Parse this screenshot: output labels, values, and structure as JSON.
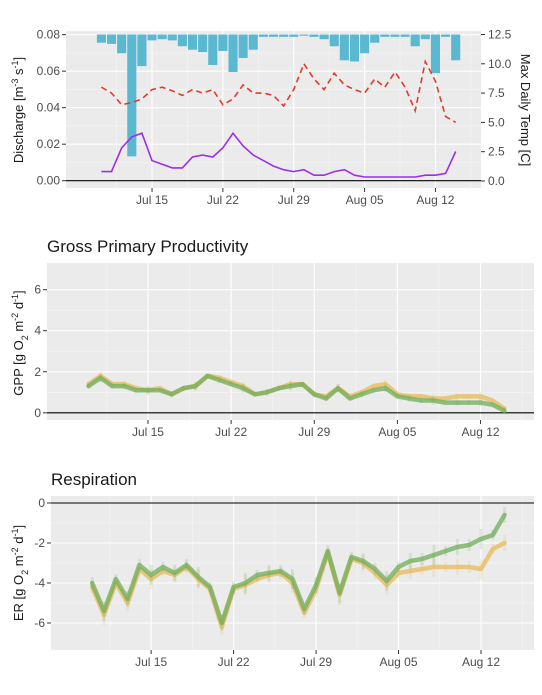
{
  "colors": {
    "panel_bg": "#ebebeb",
    "grid_major": "#ffffff",
    "discharge_bar": "#5bb8d1",
    "temp_line": "#e23b2a",
    "discharge_line": "#9b30e8",
    "gpp_orange": "#e8b95a",
    "gpp_green": "#6fae5a"
  },
  "chart_data": [
    {
      "type": "bar+line",
      "title": "",
      "xlabel": "",
      "ylabel": "Discharge [m^-3 s^-1]",
      "ylabel_parts": {
        "main": "Discharge [m",
        "exp1": "-3",
        "mid": " s",
        "exp2": "-1",
        "end": "]"
      },
      "y2label": "Max Daily Temp [C]",
      "x_ticks": [
        "Jul 15",
        "Jul 22",
        "Jul 29",
        "Aug 05",
        "Aug 12"
      ],
      "x_tick_days": [
        15,
        22,
        29,
        36,
        43
      ],
      "xlim": [
        6.5,
        47.5
      ],
      "ylim": [
        -0.004,
        0.082
      ],
      "y_ticks": [
        0.0,
        0.02,
        0.04,
        0.06,
        0.08
      ],
      "y_tick_labels": [
        "0.00",
        "0.02",
        "0.04",
        "0.06",
        "0.08"
      ],
      "y2lim": [
        -0.6,
        12.8
      ],
      "y2_ticks": [
        0.0,
        2.5,
        5.0,
        7.5,
        10.0,
        12.5
      ],
      "y2_tick_labels": [
        "0.0",
        "2.5",
        "5.0",
        "7.5",
        "10.0",
        "12.5"
      ],
      "series": [
        {
          "kind": "bar-hanging",
          "days": [
            10,
            11,
            12,
            13,
            14,
            15,
            16,
            17,
            18,
            19,
            20,
            21,
            22,
            23,
            24,
            25,
            26,
            27,
            28,
            29,
            30,
            31,
            32,
            33,
            34,
            35,
            36,
            37,
            38,
            39,
            40,
            41,
            42,
            43,
            44,
            45
          ],
          "depth": [
            0.7,
            0.8,
            1.6,
            10.4,
            2.7,
            0.5,
            0.4,
            0.5,
            1.0,
            1.3,
            1.5,
            2.6,
            1.4,
            3.2,
            2.0,
            1.3,
            0.2,
            0.2,
            0.2,
            0.2,
            0.1,
            0.2,
            0.4,
            1.0,
            2.2,
            2.3,
            1.6,
            0.7,
            0.2,
            0.2,
            0.2,
            1.0,
            0.4,
            3.3,
            0.2,
            2.2
          ]
        },
        {
          "kind": "line-dashed",
          "days": [
            10,
            11,
            12,
            13,
            14,
            15,
            16,
            17,
            18,
            19,
            20,
            21,
            22,
            23,
            24,
            25,
            26,
            27,
            28,
            29,
            30,
            31,
            32,
            33,
            34,
            35,
            36,
            37,
            38,
            39,
            40,
            41,
            42,
            43,
            44,
            45
          ],
          "values": [
            8.0,
            7.5,
            6.5,
            6.7,
            7.0,
            7.8,
            8.0,
            7.7,
            7.3,
            7.8,
            7.5,
            7.8,
            6.5,
            7.0,
            8.2,
            7.5,
            7.5,
            7.3,
            6.4,
            7.8,
            10.0,
            8.7,
            7.8,
            9.2,
            8.2,
            7.8,
            7.5,
            8.7,
            8.0,
            9.3,
            8.0,
            6.0,
            10.2,
            8.5,
            5.5,
            5.0
          ]
        },
        {
          "kind": "line-solid",
          "days": [
            10,
            11,
            12,
            13,
            14,
            15,
            16,
            17,
            18,
            19,
            20,
            21,
            22,
            23,
            24,
            25,
            26,
            27,
            28,
            29,
            30,
            31,
            32,
            33,
            34,
            35,
            36,
            37,
            38,
            39,
            40,
            41,
            42,
            43,
            44,
            45
          ],
          "values": [
            0.005,
            0.005,
            0.018,
            0.024,
            0.026,
            0.011,
            0.009,
            0.007,
            0.007,
            0.013,
            0.014,
            0.013,
            0.018,
            0.026,
            0.019,
            0.014,
            0.011,
            0.008,
            0.006,
            0.005,
            0.006,
            0.003,
            0.003,
            0.005,
            0.006,
            0.003,
            0.002,
            0.002,
            0.002,
            0.002,
            0.002,
            0.002,
            0.003,
            0.003,
            0.004,
            0.016
          ]
        }
      ]
    },
    {
      "type": "line",
      "title": "Gross Primary Productivity",
      "xlabel": "",
      "ylabel": "GPP [g O2 m^-2 d^-1]",
      "ylabel_parts": {
        "main": "GPP [g O",
        "sub": "2",
        "mid": " m",
        "exp1": "-2",
        "mid2": " d",
        "exp2": "-1",
        "end": "]"
      },
      "x_ticks": [
        "Jul 15",
        "Jul 22",
        "Jul 29",
        "Aug 05",
        "Aug 12"
      ],
      "x_tick_days": [
        15,
        22,
        29,
        36,
        43
      ],
      "xlim": [
        6.5,
        47.5
      ],
      "ylim": [
        -0.35,
        7.3
      ],
      "y_ticks": [
        0,
        2,
        4,
        6
      ],
      "y_tick_labels": [
        "0",
        "2",
        "4",
        "6"
      ],
      "series": [
        {
          "color_key": "gpp_orange",
          "days": [
            10,
            11,
            12,
            13,
            14,
            15,
            16,
            17,
            18,
            19,
            20,
            21,
            22,
            23,
            24,
            25,
            26,
            27,
            28,
            29,
            30,
            31,
            32,
            33,
            34,
            35,
            36,
            37,
            38,
            39,
            40,
            41,
            42,
            43,
            44,
            45
          ],
          "values": [
            1.4,
            1.8,
            1.4,
            1.4,
            1.2,
            1.1,
            1.2,
            0.9,
            1.2,
            1.3,
            1.8,
            1.7,
            1.5,
            1.3,
            0.9,
            1.0,
            1.2,
            1.4,
            1.4,
            0.9,
            0.8,
            1.2,
            0.8,
            1.0,
            1.3,
            1.4,
            0.9,
            0.8,
            0.8,
            0.7,
            0.7,
            0.8,
            0.8,
            0.8,
            0.6,
            0.2
          ]
        },
        {
          "color_key": "gpp_green",
          "days": [
            10,
            11,
            12,
            13,
            14,
            15,
            16,
            17,
            18,
            19,
            20,
            21,
            22,
            23,
            24,
            25,
            26,
            27,
            28,
            29,
            30,
            31,
            32,
            33,
            34,
            35,
            36,
            37,
            38,
            39,
            40,
            41,
            42,
            43,
            44,
            45
          ],
          "values": [
            1.3,
            1.7,
            1.3,
            1.3,
            1.1,
            1.1,
            1.1,
            0.9,
            1.2,
            1.3,
            1.8,
            1.6,
            1.4,
            1.2,
            0.9,
            1.0,
            1.2,
            1.3,
            1.4,
            0.9,
            0.7,
            1.2,
            0.7,
            0.9,
            1.1,
            1.2,
            0.8,
            0.7,
            0.6,
            0.6,
            0.5,
            0.5,
            0.5,
            0.5,
            0.4,
            0.1
          ]
        }
      ]
    },
    {
      "type": "line",
      "title": "Respiration",
      "xlabel": "",
      "ylabel": "ER [g O2 m^-2 d^-1]",
      "ylabel_parts": {
        "main": "ER [g O",
        "sub": "2",
        "mid": " m",
        "exp1": "-2",
        "mid2": " d",
        "exp2": "-1",
        "end": "]"
      },
      "x_ticks": [
        "Jul 15",
        "Jul 22",
        "Jul 29",
        "Aug 05",
        "Aug 12"
      ],
      "x_tick_days": [
        15,
        22,
        29,
        36,
        43
      ],
      "xlim": [
        6.5,
        47.5
      ],
      "ylim": [
        -7.35,
        0.35
      ],
      "y_ticks": [
        0,
        -2,
        -4,
        -6
      ],
      "y_tick_labels": [
        "0",
        "-2",
        "-4",
        "-6"
      ],
      "series": [
        {
          "color_key": "gpp_orange",
          "days": [
            10,
            11,
            12,
            13,
            14,
            15,
            16,
            17,
            18,
            19,
            20,
            21,
            22,
            23,
            24,
            25,
            26,
            27,
            28,
            29,
            30,
            31,
            32,
            33,
            34,
            35,
            36,
            37,
            38,
            39,
            40,
            41,
            42,
            43,
            44,
            45
          ],
          "values": [
            -4.2,
            -5.6,
            -4.0,
            -5.0,
            -3.3,
            -3.8,
            -3.4,
            -3.6,
            -3.2,
            -3.8,
            -4.3,
            -6.2,
            -4.3,
            -4.1,
            -3.8,
            -3.6,
            -3.5,
            -4.0,
            -5.5,
            -4.3,
            -2.5,
            -4.6,
            -2.8,
            -3.0,
            -3.5,
            -4.1,
            -3.5,
            -3.4,
            -3.3,
            -3.2,
            -3.2,
            -3.2,
            -3.2,
            -3.3,
            -2.3,
            -2.0
          ]
        },
        {
          "color_key": "gpp_green",
          "days": [
            10,
            11,
            12,
            13,
            14,
            15,
            16,
            17,
            18,
            19,
            20,
            21,
            22,
            23,
            24,
            25,
            26,
            27,
            28,
            29,
            30,
            31,
            32,
            33,
            34,
            35,
            36,
            37,
            38,
            39,
            40,
            41,
            42,
            43,
            44,
            45
          ],
          "values": [
            -4.0,
            -5.4,
            -3.8,
            -4.8,
            -3.1,
            -3.6,
            -3.2,
            -3.5,
            -3.1,
            -3.7,
            -4.2,
            -6.0,
            -4.2,
            -4.0,
            -3.6,
            -3.5,
            -3.4,
            -3.8,
            -5.3,
            -4.1,
            -2.4,
            -4.5,
            -2.7,
            -2.9,
            -3.3,
            -3.9,
            -3.2,
            -2.9,
            -2.8,
            -2.6,
            -2.4,
            -2.2,
            -2.1,
            -1.8,
            -1.6,
            -0.6
          ]
        }
      ]
    }
  ]
}
